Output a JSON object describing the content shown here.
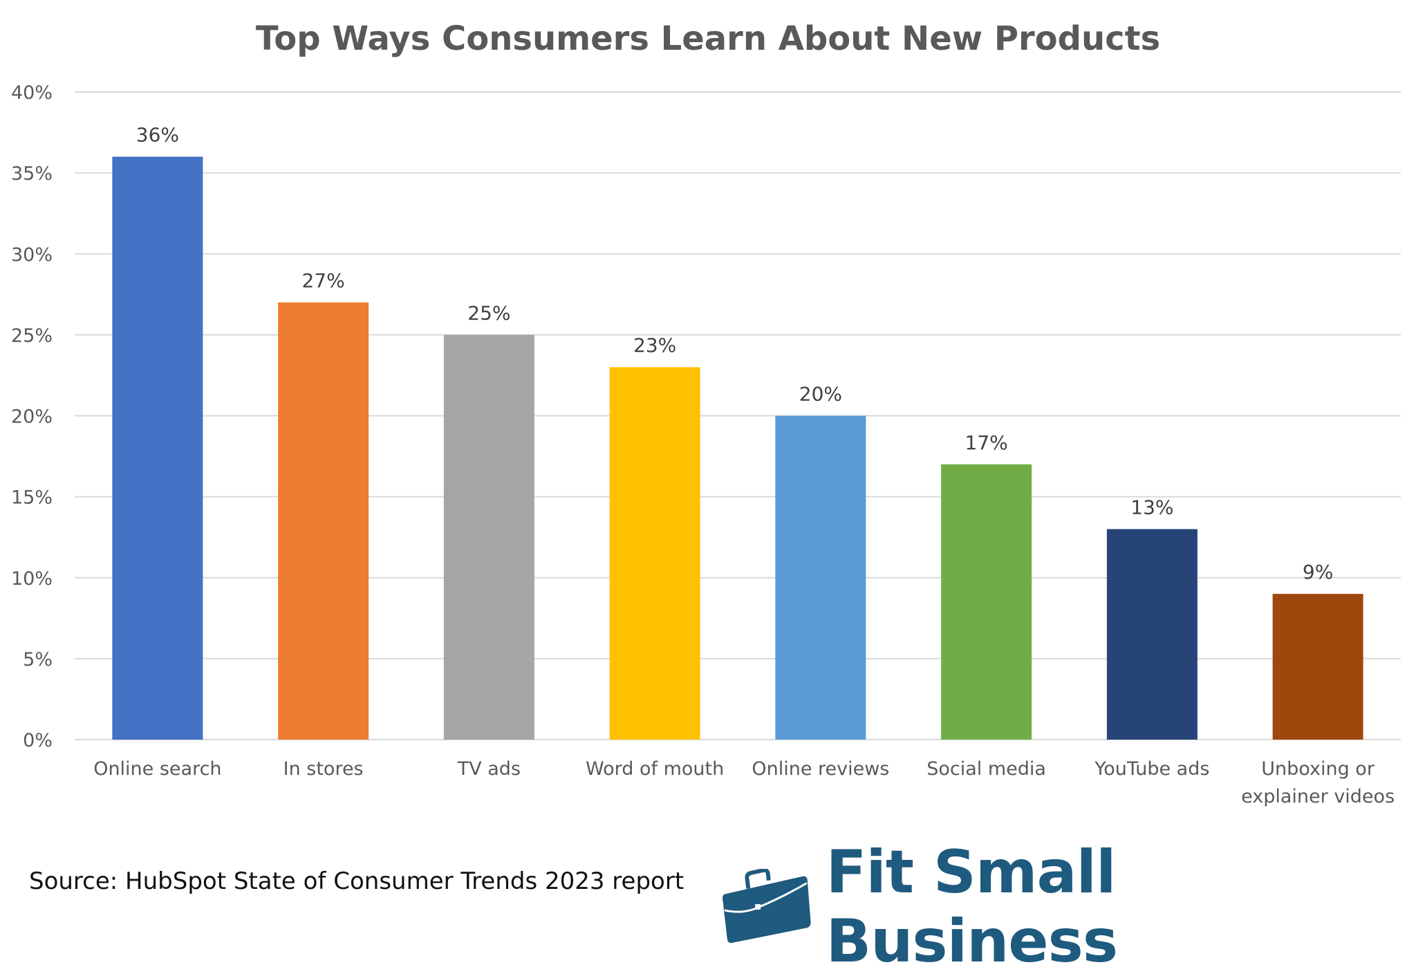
{
  "chart_data": {
    "type": "bar",
    "title": "Top Ways Consumers Learn About New Products",
    "xlabel": "",
    "ylabel": "",
    "ylim": [
      0,
      40
    ],
    "y_ticks": [
      "0%",
      "5%",
      "10%",
      "15%",
      "20%",
      "25%",
      "30%",
      "35%",
      "40%"
    ],
    "grid": true,
    "categories": [
      "Online search",
      "In stores",
      "TV ads",
      "Word of mouth",
      "Online reviews",
      "Social media",
      "YouTube ads",
      "Unboxing or explainer videos"
    ],
    "category_lines": [
      [
        "Online search"
      ],
      [
        "In stores"
      ],
      [
        "TV ads"
      ],
      [
        "Word of mouth"
      ],
      [
        "Online reviews"
      ],
      [
        "Social media"
      ],
      [
        "YouTube ads"
      ],
      [
        "Unboxing or",
        "explainer videos"
      ]
    ],
    "values": [
      36,
      27,
      25,
      23,
      20,
      17,
      13,
      9
    ],
    "data_labels": [
      "36%",
      "27%",
      "25%",
      "23%",
      "20%",
      "17%",
      "13%",
      "9%"
    ],
    "colors": [
      "#4472C4",
      "#ED7D31",
      "#A5A5A5",
      "#FFC000",
      "#5B9BD5",
      "#70AD47",
      "#264478",
      "#9E480E"
    ]
  },
  "source": "Source: HubSpot State of Consumer Trends 2023 report",
  "logo": {
    "text": "Fit Small Business",
    "icon": "briefcase-icon",
    "color": "#1F5A7F"
  }
}
